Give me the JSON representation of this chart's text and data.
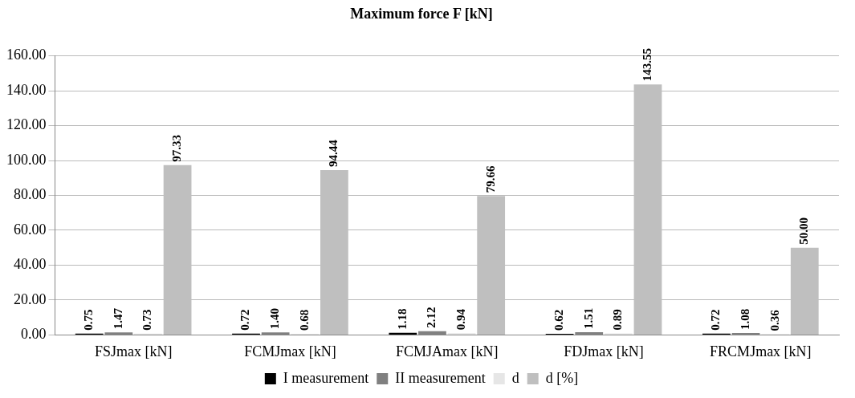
{
  "chart_data": {
    "type": "bar",
    "title": "Maximum force F [kN]",
    "categories": [
      "FSJmax [kN]",
      "FCMJmax [kN]",
      "FCMJAmax [kN]",
      "FDJmax [kN]",
      "FRCMJmax [kN]"
    ],
    "series": [
      {
        "name": "I measurement",
        "color": "#000000",
        "values": [
          0.75,
          0.72,
          1.18,
          0.62,
          0.72
        ],
        "value_labels": [
          "0.75",
          "0.72",
          "1.18",
          "0.62",
          "0.72"
        ]
      },
      {
        "name": "II measurement",
        "color": "#808080",
        "values": [
          1.47,
          1.4,
          2.12,
          1.51,
          1.08
        ],
        "value_labels": [
          "1.47",
          "1.40",
          "2.12",
          "1.51",
          "1.08"
        ]
      },
      {
        "name": "d",
        "color": "#e6e6e6",
        "values": [
          0.73,
          0.68,
          0.94,
          0.89,
          0.36
        ],
        "value_labels": [
          "0.73",
          "0.68",
          "0.94",
          "0.89",
          "0.36"
        ]
      },
      {
        "name": "d [%]",
        "color": "#bfbfbf",
        "values": [
          97.33,
          94.44,
          79.66,
          143.55,
          50.0
        ],
        "value_labels": [
          "97.33",
          "94.44",
          "79.66",
          "143.55",
          "50.00"
        ]
      }
    ],
    "ylim": [
      0,
      160
    ],
    "yticks": [
      {
        "value": 0,
        "label": "0.00"
      },
      {
        "value": 20,
        "label": "20.00"
      },
      {
        "value": 40,
        "label": "40.00"
      },
      {
        "value": 60,
        "label": "60.00"
      },
      {
        "value": 80,
        "label": "80.00"
      },
      {
        "value": 100,
        "label": "100.00"
      },
      {
        "value": 120,
        "label": "120.00"
      },
      {
        "value": 140,
        "label": "140.00"
      },
      {
        "value": 160,
        "label": "160.00"
      }
    ],
    "grid": "y",
    "legend": "bottom"
  }
}
